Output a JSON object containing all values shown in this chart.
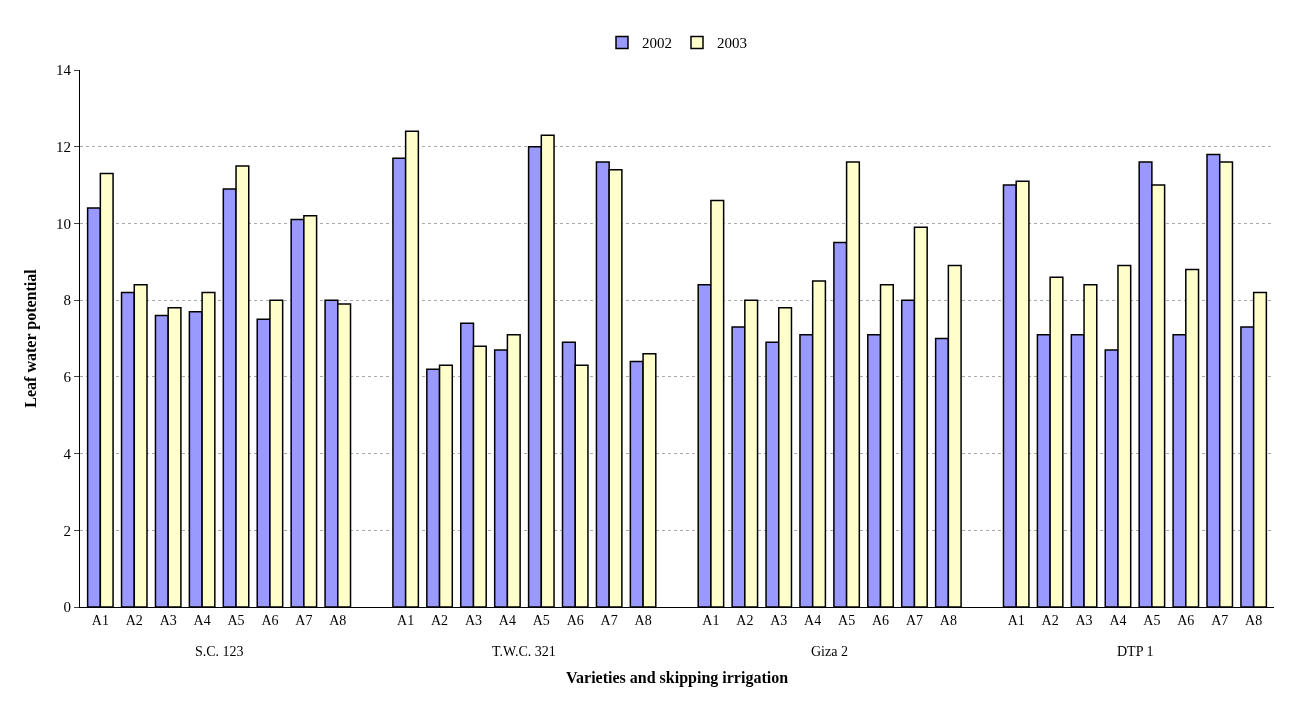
{
  "chart_data": {
    "type": "bar",
    "xlabel": "Varieties and skipping irrigation",
    "ylabel": "Leaf water potential",
    "categories": [
      "A1",
      "A2",
      "A3",
      "A4",
      "A5",
      "A6",
      "A7",
      "A8",
      null,
      "A1",
      "A2",
      "A3",
      "A4",
      "A5",
      "A6",
      "A7",
      "A8",
      null,
      "A1",
      "A2",
      "A3",
      "A4",
      "A5",
      "A6",
      "A7",
      "A8",
      null,
      "A1",
      "A2",
      "A3",
      "A4",
      "A5",
      "A6",
      "A7",
      "A8"
    ],
    "series": [
      {
        "name": "2002",
        "color": "#9999ff",
        "values": [
          10.4,
          8.2,
          7.6,
          7.7,
          10.9,
          7.5,
          10.1,
          8.0,
          null,
          11.7,
          6.2,
          7.4,
          6.7,
          12.0,
          6.9,
          11.6,
          6.4,
          null,
          8.4,
          7.3,
          6.9,
          7.1,
          9.5,
          7.1,
          8.0,
          7.0,
          null,
          11.0,
          7.1,
          7.1,
          6.7,
          11.6,
          7.1,
          11.8,
          7.3
        ]
      },
      {
        "name": "2003",
        "color": "#ffffcc",
        "values": [
          11.3,
          8.4,
          7.8,
          8.2,
          11.5,
          8.0,
          10.2,
          7.9,
          null,
          12.4,
          6.3,
          6.8,
          7.1,
          12.3,
          6.3,
          11.4,
          6.6,
          null,
          10.6,
          8.0,
          7.8,
          8.5,
          11.6,
          8.4,
          9.9,
          8.9,
          null,
          11.1,
          8.6,
          8.4,
          8.9,
          11.0,
          8.8,
          11.6,
          8.2
        ]
      }
    ],
    "annotations": [
      "S.C. 123",
      "T.W.C. 321",
      "Giza 2",
      "DTP 1"
    ],
    "ylim": [
      0,
      14
    ],
    "yticks": [
      0,
      2,
      4,
      6,
      8,
      10,
      12,
      14
    ],
    "grid": "y",
    "legend": "top"
  }
}
